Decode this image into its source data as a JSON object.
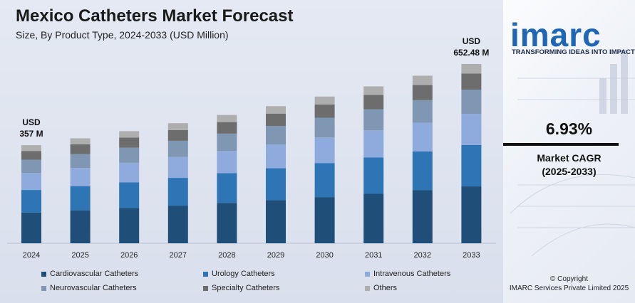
{
  "header": {
    "title": "Mexico Catheters Market Forecast",
    "subtitle": "Size, By Product Type, 2024-2033 (USD Million)"
  },
  "annotations": {
    "first": {
      "line1": "USD",
      "line2": "357 M"
    },
    "last": {
      "line1": "USD",
      "line2": "652.48 M"
    }
  },
  "side": {
    "logo": "imarc",
    "tagline": "TRANSFORMING IDEAS INTO IMPACT",
    "cagr_value": "6.93%",
    "cagr_label": "Market CAGR",
    "cagr_period": "(2025-2033)",
    "copyright_line1": "© Copyright",
    "copyright_line2": "IMARC Services Private Limited 2025"
  },
  "chart_data": {
    "type": "bar",
    "stacked": true,
    "title": "Mexico Catheters Market Forecast",
    "subtitle": "Size, By Product Type, 2024-2033 (USD Million)",
    "xlabel": "",
    "ylabel": "",
    "grid": false,
    "legend_position": "bottom",
    "categories": [
      "2024",
      "2025",
      "2026",
      "2027",
      "2028",
      "2029",
      "2030",
      "2031",
      "2032",
      "2033"
    ],
    "totals": [
      357,
      382,
      408,
      437,
      467,
      499,
      534,
      571,
      610,
      652.48
    ],
    "series": [
      {
        "name": "Cardiovascular Catheters",
        "color": "#1f4e79",
        "values": [
          112,
          120,
          128,
          137,
          147,
          157,
          168,
          180,
          193,
          207
        ]
      },
      {
        "name": "Urology Catheters",
        "color": "#2e75b6",
        "values": [
          82,
          88,
          94,
          101,
          108,
          116,
          124,
          132,
          141,
          151
        ]
      },
      {
        "name": "Intravenous Catheters",
        "color": "#8faadc",
        "values": [
          62,
          66,
          71,
          76,
          81,
          87,
          93,
          99,
          105,
          113
        ]
      },
      {
        "name": "Neurovascular Catheters",
        "color": "#7f97b2",
        "values": [
          48,
          51,
          55,
          59,
          63,
          67,
          72,
          77,
          82,
          88
        ]
      },
      {
        "name": "Specialty Catheters",
        "color": "#6d6d6d",
        "values": [
          32,
          35,
          37,
          39,
          42,
          45,
          48,
          52,
          55,
          59
        ]
      },
      {
        "name": "Others",
        "color": "#aeaeae",
        "values": [
          21,
          22,
          23,
          25,
          26,
          27,
          29,
          31,
          34,
          34.48
        ]
      }
    ]
  }
}
